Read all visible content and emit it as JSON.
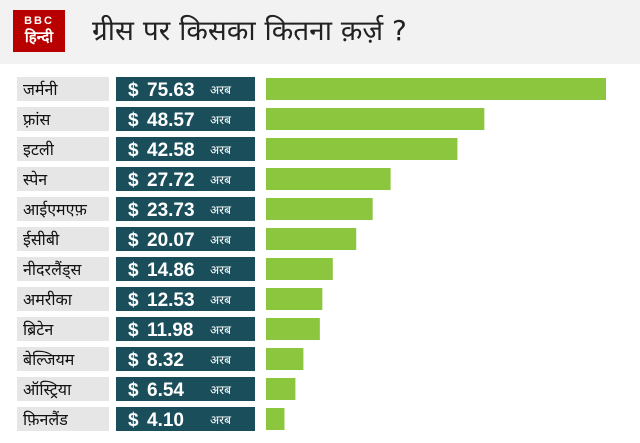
{
  "logo": {
    "brand": "BBC",
    "language": "हिन्दी"
  },
  "title": "ग्रीस पर किसका कितना क़र्ज़ ?",
  "colors": {
    "label_bg": "#e6e6e6",
    "value_bg": "#1b4e5b",
    "bar": "#8cc63f",
    "header_bg": "#f2f2f2",
    "logo_bg": "#b80000"
  },
  "chart_data": {
    "type": "bar",
    "orientation": "horizontal",
    "title": "ग्रीस पर किसका कितना क़र्ज़ ?",
    "currency_symbol": "$",
    "unit": "अरब",
    "categories": [
      "जर्मनी",
      "फ़्रांस",
      "इटली",
      "स्पेन",
      "आईएमएफ़",
      "ईसीबी",
      "नीदरलैंड्स",
      "अमरीका",
      "ब्रिटेन",
      "बेल्जियम",
      "ऑस्ट्रिया",
      "फ़िनलैंड"
    ],
    "value_labels": [
      "75.63",
      "48.57",
      "42.58",
      "27.72",
      "23.73",
      "20.07",
      "14.86",
      "12.53",
      "11.98",
      "8.32",
      "6.54",
      "4.10"
    ],
    "values": [
      75.63,
      48.57,
      42.58,
      27.72,
      23.73,
      20.07,
      14.86,
      12.53,
      11.98,
      8.32,
      6.54,
      4.1
    ],
    "xlim": [
      0,
      75.63
    ]
  }
}
